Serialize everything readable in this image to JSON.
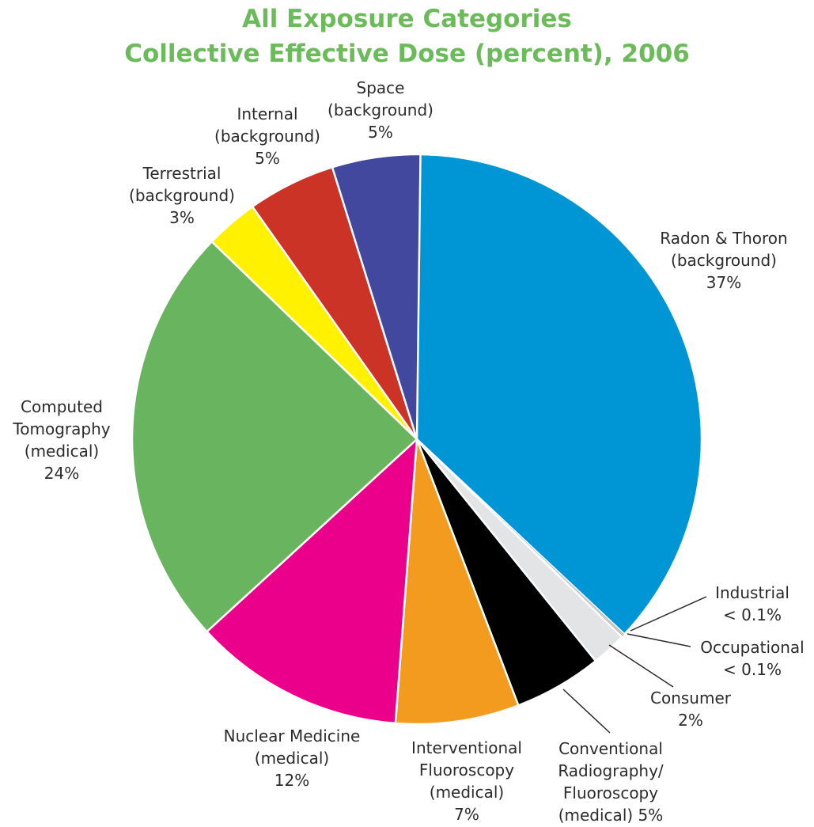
{
  "chart_data": {
    "type": "pie",
    "title": "All Exposure Categories",
    "subtitle": "Collective Effective Dose (percent), 2006",
    "slices": [
      {
        "name": "radon-thoron",
        "label_lines": [
          "Radon & Thoron",
          "(background)",
          "37%"
        ],
        "value": 37,
        "color": "#0096d6"
      },
      {
        "name": "industrial",
        "label_lines": [
          "Industrial",
          "< 0.1%"
        ],
        "value": 0.1,
        "color": "#bfbfbf"
      },
      {
        "name": "occupational",
        "label_lines": [
          "Occupational",
          "< 0.1%"
        ],
        "value": 0.1,
        "color": "#9e9e9e"
      },
      {
        "name": "consumer",
        "label_lines": [
          "Consumer",
          "2%"
        ],
        "value": 2,
        "color": "#e3e4e5"
      },
      {
        "name": "conventional-radiography",
        "label_lines": [
          "Conventional",
          "Radiography/",
          "Fluoroscopy",
          "(medical)  5%"
        ],
        "value": 5,
        "color": "#000000"
      },
      {
        "name": "interventional-fluoroscopy",
        "label_lines": [
          "Interventional",
          "Fluoroscopy",
          "(medical)",
          "7%"
        ],
        "value": 7,
        "color": "#f29b1f"
      },
      {
        "name": "nuclear-medicine",
        "label_lines": [
          "Nuclear Medicine",
          "(medical)",
          "12%"
        ],
        "value": 12,
        "color": "#ea008b"
      },
      {
        "name": "computed-tomography",
        "label_lines": [
          "Computed",
          "Tomography",
          "(medical)",
          "24%"
        ],
        "value": 24,
        "color": "#68b45f"
      },
      {
        "name": "terrestrial",
        "label_lines": [
          "Terrestrial",
          "(background)",
          "3%"
        ],
        "value": 3,
        "color": "#fff100"
      },
      {
        "name": "internal",
        "label_lines": [
          "Internal",
          "(background)",
          "5%"
        ],
        "value": 5,
        "color": "#cc3327"
      },
      {
        "name": "space",
        "label_lines": [
          "Space",
          "(background)",
          "5%"
        ],
        "value": 5,
        "color": "#41489e"
      }
    ]
  }
}
